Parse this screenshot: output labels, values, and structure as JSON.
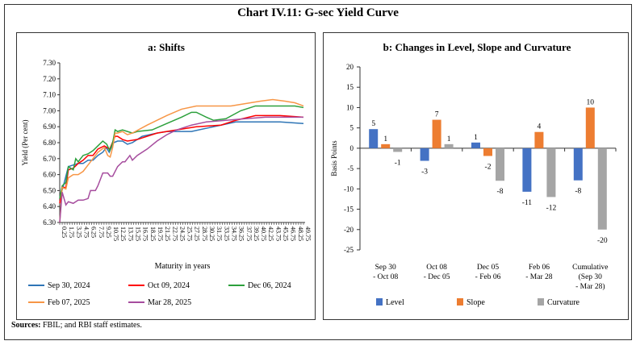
{
  "title": "Chart IV.11: G-sec Yield Curve",
  "sources_label": "Sources:",
  "sources_text": " FBIL; and RBI staff estimates.",
  "chart_data": [
    {
      "type": "line",
      "title": "a: Shifts",
      "xlabel": "Maturity in years",
      "ylabel": "Yield (Per cent)",
      "ylim": [
        6.3,
        7.3
      ],
      "xlim": [
        0.25,
        49.75
      ],
      "yticks": [
        "6.30",
        "6.40",
        "6.50",
        "6.60",
        "6.70",
        "6.80",
        "6.90",
        "7.00",
        "7.10",
        "7.20",
        "7.30"
      ],
      "xtick_start": 0.25,
      "xtick_step": 1.5,
      "legend": "bottom",
      "grid": false,
      "series": [
        {
          "name": "Sep 30, 2024",
          "color": "#2e75b6",
          "points": [
            [
              0.25,
              6.45
            ],
            [
              1,
              6.53
            ],
            [
              2,
              6.65
            ],
            [
              3,
              6.66
            ],
            [
              4,
              6.67
            ],
            [
              5,
              6.67
            ],
            [
              6,
              6.69
            ],
            [
              7,
              6.69
            ],
            [
              8,
              6.72
            ],
            [
              9,
              6.74
            ],
            [
              9.7,
              6.77
            ],
            [
              10.3,
              6.74
            ],
            [
              11.2,
              6.8
            ],
            [
              12,
              6.81
            ],
            [
              13,
              6.81
            ],
            [
              14,
              6.79
            ],
            [
              15,
              6.8
            ],
            [
              17,
              6.84
            ],
            [
              20,
              6.86
            ],
            [
              22,
              6.87
            ],
            [
              27,
              6.87
            ],
            [
              30,
              6.89
            ],
            [
              33,
              6.91
            ],
            [
              36,
              6.93
            ],
            [
              45,
              6.93
            ],
            [
              49.75,
              6.92
            ]
          ]
        },
        {
          "name": "Oct 09, 2024",
          "color": "#ff0000",
          "points": [
            [
              0.25,
              6.42
            ],
            [
              0.75,
              6.52
            ],
            [
              1.5,
              6.52
            ],
            [
              2,
              6.63
            ],
            [
              3,
              6.64
            ],
            [
              4,
              6.67
            ],
            [
              5,
              6.69
            ],
            [
              6,
              6.72
            ],
            [
              7,
              6.72
            ],
            [
              8,
              6.76
            ],
            [
              9.3,
              6.78
            ],
            [
              9.8,
              6.77
            ],
            [
              10.4,
              6.76
            ],
            [
              11.5,
              6.84
            ],
            [
              12,
              6.84
            ],
            [
              13,
              6.82
            ],
            [
              14,
              6.81
            ],
            [
              16,
              6.82
            ],
            [
              20,
              6.86
            ],
            [
              24,
              6.88
            ],
            [
              28,
              6.9
            ],
            [
              33,
              6.91
            ],
            [
              36,
              6.94
            ],
            [
              40,
              6.97
            ],
            [
              45,
              6.97
            ],
            [
              49.75,
              6.96
            ]
          ]
        },
        {
          "name": "Dec 06, 2024",
          "color": "#2ca03c",
          "points": [
            [
              0.25,
              6.45
            ],
            [
              0.75,
              6.53
            ],
            [
              1.5,
              6.55
            ],
            [
              2,
              6.65
            ],
            [
              3,
              6.63
            ],
            [
              3.5,
              6.7
            ],
            [
              4,
              6.68
            ],
            [
              5,
              6.72
            ],
            [
              6,
              6.73
            ],
            [
              7,
              6.75
            ],
            [
              8,
              6.78
            ],
            [
              9,
              6.81
            ],
            [
              9.8,
              6.79
            ],
            [
              10.4,
              6.75
            ],
            [
              11,
              6.8
            ],
            [
              11.5,
              6.88
            ],
            [
              12,
              6.87
            ],
            [
              13,
              6.88
            ],
            [
              14,
              6.87
            ],
            [
              15,
              6.86
            ],
            [
              16,
              6.87
            ],
            [
              19,
              6.88
            ],
            [
              22,
              6.92
            ],
            [
              25,
              6.96
            ],
            [
              27,
              6.99
            ],
            [
              28,
              6.99
            ],
            [
              30,
              6.96
            ],
            [
              31.5,
              6.94
            ],
            [
              34,
              6.95
            ],
            [
              37,
              7.0
            ],
            [
              40,
              7.03
            ],
            [
              48,
              7.03
            ],
            [
              49.75,
              7.02
            ]
          ]
        },
        {
          "name": "Feb 07, 2025",
          "color": "#f79646",
          "points": [
            [
              0.25,
              6.3
            ],
            [
              0.75,
              6.52
            ],
            [
              1.5,
              6.51
            ],
            [
              2,
              6.58
            ],
            [
              3,
              6.6
            ],
            [
              4,
              6.6
            ],
            [
              5,
              6.62
            ],
            [
              6,
              6.66
            ],
            [
              7,
              6.7
            ],
            [
              8,
              6.74
            ],
            [
              9.3,
              6.77
            ],
            [
              10,
              6.72
            ],
            [
              10.5,
              6.71
            ],
            [
              11,
              6.77
            ],
            [
              11.5,
              6.86
            ],
            [
              12,
              6.86
            ],
            [
              13,
              6.87
            ],
            [
              14,
              6.85
            ],
            [
              15,
              6.86
            ],
            [
              18,
              6.91
            ],
            [
              22,
              6.97
            ],
            [
              25,
              7.01
            ],
            [
              28,
              7.03
            ],
            [
              35,
              7.03
            ],
            [
              39,
              7.05
            ],
            [
              41,
              7.06
            ],
            [
              43.5,
              7.07
            ],
            [
              46,
              7.06
            ],
            [
              48,
              7.05
            ],
            [
              49.75,
              7.03
            ]
          ]
        },
        {
          "name": "Mar 28, 2025",
          "color": "#a64d9e",
          "points": [
            [
              0.25,
              6.3
            ],
            [
              0.75,
              6.49
            ],
            [
              1.5,
              6.41
            ],
            [
              2,
              6.43
            ],
            [
              3,
              6.42
            ],
            [
              4,
              6.44
            ],
            [
              5,
              6.44
            ],
            [
              6,
              6.45
            ],
            [
              6.5,
              6.5
            ],
            [
              7.5,
              6.5
            ],
            [
              8,
              6.53
            ],
            [
              9,
              6.61
            ],
            [
              10,
              6.61
            ],
            [
              10.5,
              6.59
            ],
            [
              11,
              6.59
            ],
            [
              12,
              6.65
            ],
            [
              13,
              6.68
            ],
            [
              13.5,
              6.68
            ],
            [
              14.5,
              6.72
            ],
            [
              15,
              6.69
            ],
            [
              16,
              6.72
            ],
            [
              18,
              6.76
            ],
            [
              20,
              6.81
            ],
            [
              22,
              6.85
            ],
            [
              24,
              6.88
            ],
            [
              27,
              6.91
            ],
            [
              30,
              6.93
            ],
            [
              34,
              6.94
            ],
            [
              38,
              6.95
            ],
            [
              42,
              6.96
            ],
            [
              49.75,
              6.96
            ]
          ]
        }
      ]
    },
    {
      "type": "bar",
      "title": "b: Changes in Level, Slope and Curvature",
      "ylabel": "Basis Points",
      "ylim": [
        -25,
        20
      ],
      "yticks": [
        "-25",
        "-20",
        "-15",
        "-10",
        "-5",
        "0",
        "5",
        "10",
        "15",
        "20"
      ],
      "legend": "bottom",
      "grid": false,
      "categories": [
        [
          "Sep 30",
          "- Oct 08"
        ],
        [
          "Oct 08",
          "- Dec 05"
        ],
        [
          "Dec 05",
          "- Feb 06"
        ],
        [
          "Feb 06",
          "- Mar 28"
        ],
        [
          "Cumulative",
          "(Sep 30",
          "- Mar 28)"
        ]
      ],
      "series": [
        {
          "name": "Level",
          "color": "#4472c4",
          "values": [
            4.7,
            -3.1,
            1.4,
            -10.7,
            -7.9
          ],
          "labels": [
            "5",
            "-3",
            "1",
            "-11",
            "-8"
          ]
        },
        {
          "name": "Slope",
          "color": "#ed7d31",
          "values": [
            1,
            7,
            -1.9,
            4,
            10
          ],
          "labels": [
            "1",
            "7",
            "-2",
            "4",
            "10"
          ]
        },
        {
          "name": "Curvature",
          "color": "#a5a5a5",
          "values": [
            -0.9,
            1,
            -8,
            -12,
            -20
          ],
          "labels": [
            "-1",
            "1",
            "-8",
            "-12",
            "-20"
          ]
        }
      ]
    }
  ]
}
